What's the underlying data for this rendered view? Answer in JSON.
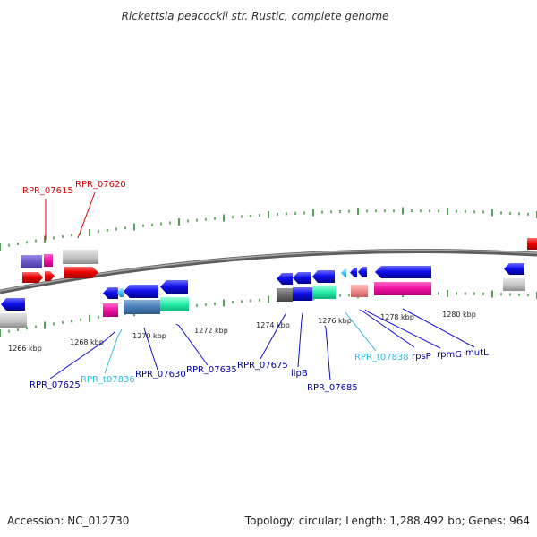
{
  "title": "Rickettsia peacockii str. Rustic, complete genome",
  "footer": {
    "accession": "Accession: NC_012730",
    "summary": "Topology: circular; Length: 1,288,492 bp; Genes: 964"
  },
  "colors": {
    "backbone": "#7a7a7a",
    "tick": "#2e8b2e",
    "label_red": "#dd0000",
    "label_blue": "#0000aa",
    "label_cyan": "#33bbdd",
    "leader_blue": "#1111cc"
  },
  "scale_labels": [
    "1266 kbp",
    "1268 kbp",
    "1270 kbp",
    "1272 kbp",
    "1274 kbp",
    "1276 kbp",
    "1278 kbp",
    "1280 kbp"
  ],
  "gene_labels": [
    {
      "text": "RPR_07615",
      "color": "red"
    },
    {
      "text": "RPR_07620",
      "color": "red"
    },
    {
      "text": "RPR_07625",
      "color": "blue"
    },
    {
      "text": "RPR_t07836",
      "color": "cyan"
    },
    {
      "text": "RPR_07630",
      "color": "blue"
    },
    {
      "text": "RPR_07635",
      "color": "blue"
    },
    {
      "text": "RPR_07675",
      "color": "blue"
    },
    {
      "text": "lipB",
      "color": "blue"
    },
    {
      "text": "RPR_07685",
      "color": "blue"
    },
    {
      "text": "RPR_t07838",
      "color": "cyan"
    },
    {
      "text": "rpsP",
      "color": "blue"
    },
    {
      "text": "rpmG",
      "color": "blue"
    },
    {
      "text": "mutL",
      "color": "blue"
    }
  ]
}
